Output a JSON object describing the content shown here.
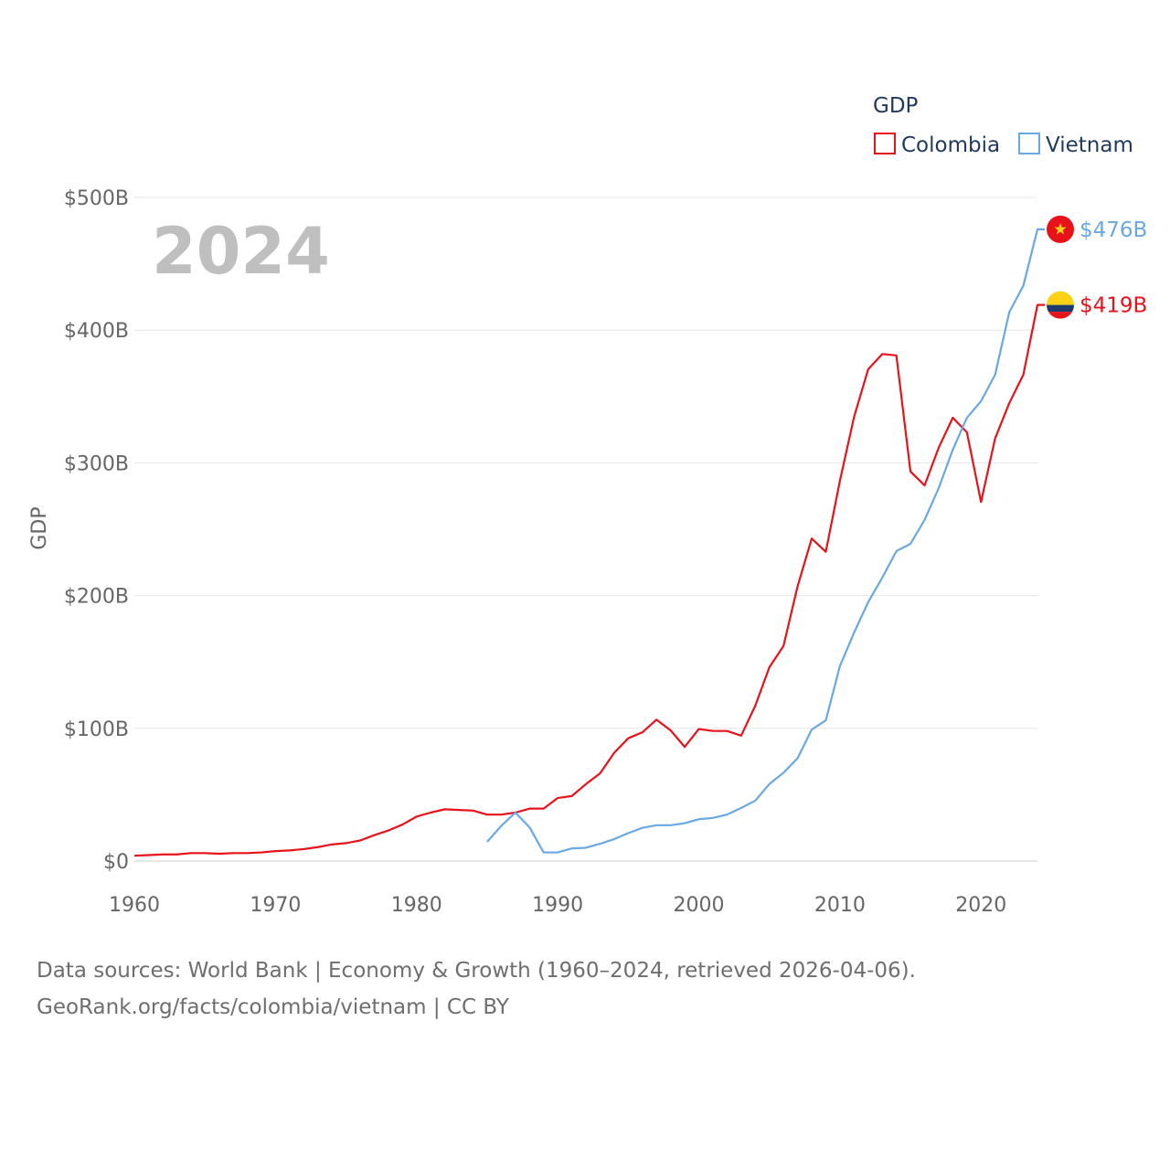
{
  "chart_data": {
    "type": "line",
    "title": "",
    "ylabel": "GDP",
    "xlabel": "",
    "year_label": "2024",
    "legend_title": "GDP",
    "ylim": [
      0,
      500
    ],
    "xlim": [
      1960,
      2024
    ],
    "y_ticks": [
      {
        "value": 0,
        "label": "$0"
      },
      {
        "value": 100,
        "label": "$100B"
      },
      {
        "value": 200,
        "label": "$200B"
      },
      {
        "value": 300,
        "label": "$300B"
      },
      {
        "value": 400,
        "label": "$400B"
      },
      {
        "value": 500,
        "label": "$500B"
      }
    ],
    "x_ticks": [
      {
        "value": 1960,
        "label": "1960"
      },
      {
        "value": 1970,
        "label": "1970"
      },
      {
        "value": 1980,
        "label": "1980"
      },
      {
        "value": 1990,
        "label": "1990"
      },
      {
        "value": 2000,
        "label": "2000"
      },
      {
        "value": 2010,
        "label": "2010"
      },
      {
        "value": 2020,
        "label": "2020"
      }
    ],
    "series": [
      {
        "name": "Colombia",
        "color": "#e8121b",
        "flag_icon": "colombia-flag-icon",
        "end_label": "$419B",
        "x": [
          1960,
          1961,
          1962,
          1963,
          1964,
          1965,
          1966,
          1967,
          1968,
          1969,
          1970,
          1971,
          1972,
          1973,
          1974,
          1975,
          1976,
          1977,
          1978,
          1979,
          1980,
          1981,
          1982,
          1983,
          1984,
          1985,
          1986,
          1987,
          1988,
          1989,
          1990,
          1991,
          1992,
          1993,
          1994,
          1995,
          1996,
          1997,
          1998,
          1999,
          2000,
          2001,
          2002,
          2003,
          2004,
          2005,
          2006,
          2007,
          2008,
          2009,
          2010,
          2011,
          2012,
          2013,
          2014,
          2015,
          2016,
          2017,
          2018,
          2019,
          2020,
          2021,
          2022,
          2023,
          2024
        ],
        "values": [
          4,
          4.5,
          5,
          5,
          6,
          6,
          5.5,
          6,
          6,
          6.5,
          7.5,
          8,
          9,
          10.5,
          12.5,
          13.5,
          15.5,
          19.5,
          23,
          27.5,
          33.5,
          36.5,
          39,
          38.5,
          38,
          35,
          35,
          36.5,
          39.5,
          39.5,
          47.5,
          49,
          58,
          66,
          81.5,
          92.5,
          97,
          106.5,
          98.5,
          86,
          99.5,
          98,
          98,
          94.5,
          117,
          146,
          162,
          207,
          243,
          233,
          286.5,
          334.5,
          370.5,
          382,
          381,
          293.5,
          283,
          311.5,
          334,
          323,
          270.5,
          318.5,
          345,
          366.5,
          419
        ]
      },
      {
        "name": "Vietnam",
        "color": "#6aa8e4",
        "flag_icon": "vietnam-flag-icon",
        "end_label": "$476B",
        "x": [
          1985,
          1986,
          1987,
          1988,
          1989,
          1990,
          1991,
          1992,
          1993,
          1994,
          1995,
          1996,
          1997,
          1998,
          1999,
          2000,
          2001,
          2002,
          2003,
          2004,
          2005,
          2006,
          2007,
          2008,
          2009,
          2010,
          2011,
          2012,
          2013,
          2014,
          2015,
          2016,
          2017,
          2018,
          2019,
          2020,
          2021,
          2022,
          2023,
          2024
        ],
        "values": [
          14.5,
          26.5,
          36.5,
          25.5,
          6.5,
          6.5,
          9.5,
          10,
          13,
          16.5,
          21,
          25,
          27,
          27,
          28.5,
          31.5,
          32.5,
          35,
          40,
          45.5,
          58,
          66.5,
          77.5,
          99,
          106,
          147,
          172,
          195,
          213.5,
          233.5,
          239,
          257,
          281,
          310,
          334,
          346.5,
          366.5,
          413.5,
          433.5,
          476
        ]
      }
    ]
  },
  "footer": {
    "line1": "Data sources: World Bank | Economy & Growth (1960–2024, retrieved 2026-04-06).",
    "line2": "GeoRank.org/facts/colombia/vietnam | CC BY"
  }
}
